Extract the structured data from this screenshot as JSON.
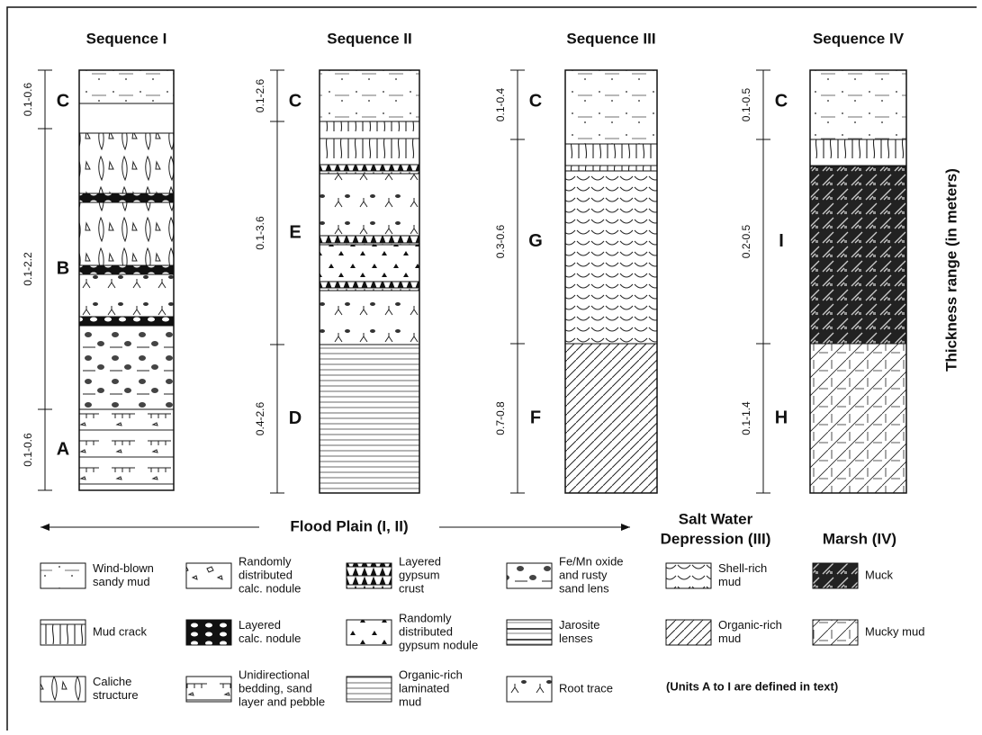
{
  "sequences": [
    {
      "title": "Sequence I",
      "units": [
        {
          "letter": "C",
          "range": "0.1-0.6"
        },
        {
          "letter": "B",
          "range": "0.1-2.2"
        },
        {
          "letter": "A",
          "range": "0.1-0.6"
        }
      ]
    },
    {
      "title": "Sequence II",
      "units": [
        {
          "letter": "C",
          "range": "0.1-2.6"
        },
        {
          "letter": "E",
          "range": "0.1-3.6"
        },
        {
          "letter": "D",
          "range": "0.4-2.6"
        }
      ]
    },
    {
      "title": "Sequence III",
      "units": [
        {
          "letter": "C",
          "range": "0.1-0.4"
        },
        {
          "letter": "G",
          "range": "0.3-0.6"
        },
        {
          "letter": "F",
          "range": "0.7-0.8"
        }
      ]
    },
    {
      "title": "Sequence IV",
      "units": [
        {
          "letter": "C",
          "range": "0.1-0.5"
        },
        {
          "letter": "I",
          "range": "0.2-0.5"
        },
        {
          "letter": "H",
          "range": "0.1-1.4"
        }
      ]
    }
  ],
  "axis_label": "Thickness range (in meters)",
  "environments": {
    "flood_plain": "Flood Plain (I, II)",
    "salt_water": [
      "Salt Water",
      "Depression  (III)"
    ],
    "marsh": "Marsh  (IV)"
  },
  "legend": {
    "items": [
      {
        "label": [
          "Wind-blown",
          "sandy mud"
        ]
      },
      {
        "label": [
          "Randomly",
          "distributed",
          "calc. nodule"
        ]
      },
      {
        "label": [
          "Layered",
          "gypsum",
          "crust"
        ]
      },
      {
        "label": [
          "Fe/Mn oxide",
          "and rusty",
          "sand lens"
        ]
      },
      {
        "label": [
          "Shell-rich",
          "mud"
        ]
      },
      {
        "label": [
          "Muck"
        ]
      },
      {
        "label": [
          "Mud crack"
        ]
      },
      {
        "label": [
          "Layered",
          "calc. nodule"
        ]
      },
      {
        "label": [
          "Randomly",
          "distributed",
          "gypsum nodule"
        ]
      },
      {
        "label": [
          "Jarosite",
          "lenses"
        ]
      },
      {
        "label": [
          "Organic-rich",
          "mud"
        ]
      },
      {
        "label": [
          "Mucky mud"
        ]
      },
      {
        "label": [
          "Caliche",
          "structure"
        ]
      },
      {
        "label": [
          "Unidirectional",
          "bedding, sand",
          "layer and pebble"
        ]
      },
      {
        "label": [
          "Organic-rich",
          "laminated",
          "mud"
        ]
      },
      {
        "label": [
          "Root trace"
        ]
      }
    ],
    "note": "(Units A to I are defined in text)"
  }
}
